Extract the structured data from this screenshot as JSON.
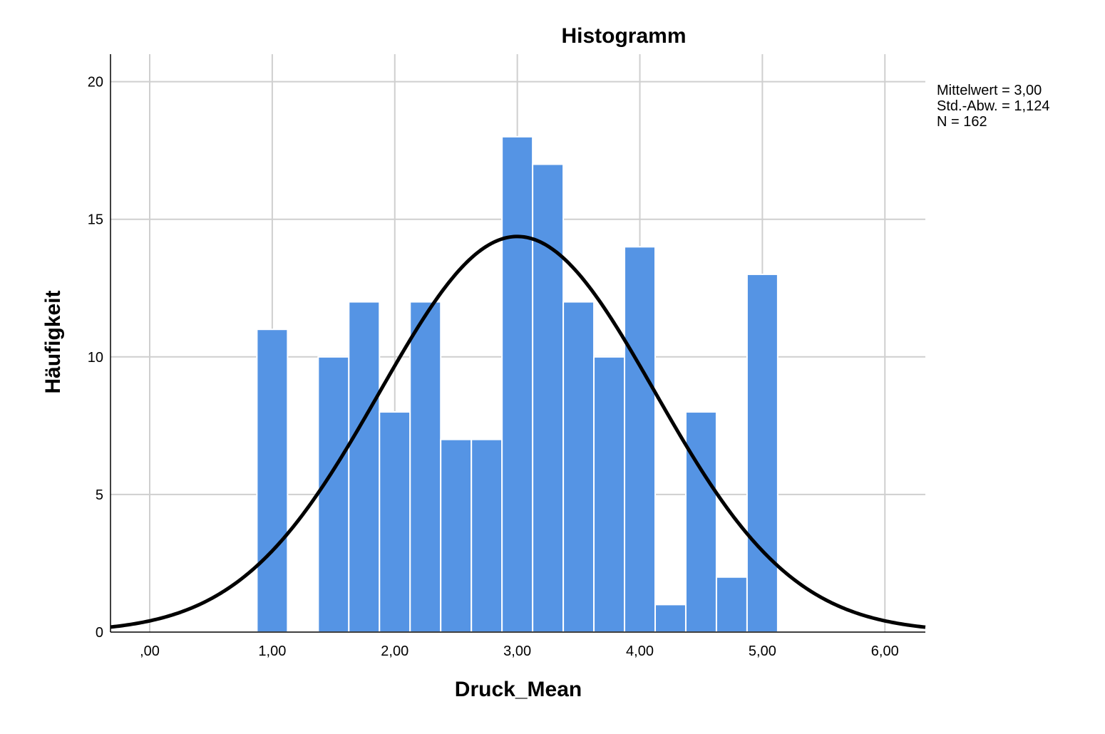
{
  "chart_data": {
    "type": "bar",
    "title": "Histogramm",
    "xlabel": "Druck_Mean",
    "ylabel": "Häufigkeit",
    "xlim": [
      -0.32,
      6.33
    ],
    "ylim": [
      0,
      21
    ],
    "x_ticks": [
      0,
      1,
      2,
      3,
      4,
      5,
      6
    ],
    "x_tick_labels": [
      ",00",
      "1,00",
      "2,00",
      "3,00",
      "4,00",
      "5,00",
      "6,00"
    ],
    "y_ticks": [
      0,
      5,
      10,
      15,
      20
    ],
    "y_tick_labels": [
      "0",
      "5",
      "10",
      "15",
      "20"
    ],
    "bin_width": 0.25,
    "bins": [
      {
        "start": 0.875,
        "value": 11
      },
      {
        "start": 1.375,
        "value": 10
      },
      {
        "start": 1.625,
        "value": 12
      },
      {
        "start": 1.875,
        "value": 8
      },
      {
        "start": 2.125,
        "value": 12
      },
      {
        "start": 2.375,
        "value": 7
      },
      {
        "start": 2.625,
        "value": 7
      },
      {
        "start": 2.875,
        "value": 18
      },
      {
        "start": 3.125,
        "value": 17
      },
      {
        "start": 3.375,
        "value": 12
      },
      {
        "start": 3.625,
        "value": 10
      },
      {
        "start": 3.875,
        "value": 14
      },
      {
        "start": 4.125,
        "value": 1
      },
      {
        "start": 4.375,
        "value": 8
      },
      {
        "start": 4.625,
        "value": 2
      },
      {
        "start": 4.875,
        "value": 13
      }
    ],
    "normal_curve": {
      "mean": 3.0,
      "sd": 1.124,
      "n": 162
    },
    "stats_lines": [
      "Mittelwert = 3,00",
      "Std.-Abw. = 1,124",
      "N = 162"
    ],
    "grid": true,
    "bar_color": "#5594e4",
    "curve_color": "#000000"
  }
}
